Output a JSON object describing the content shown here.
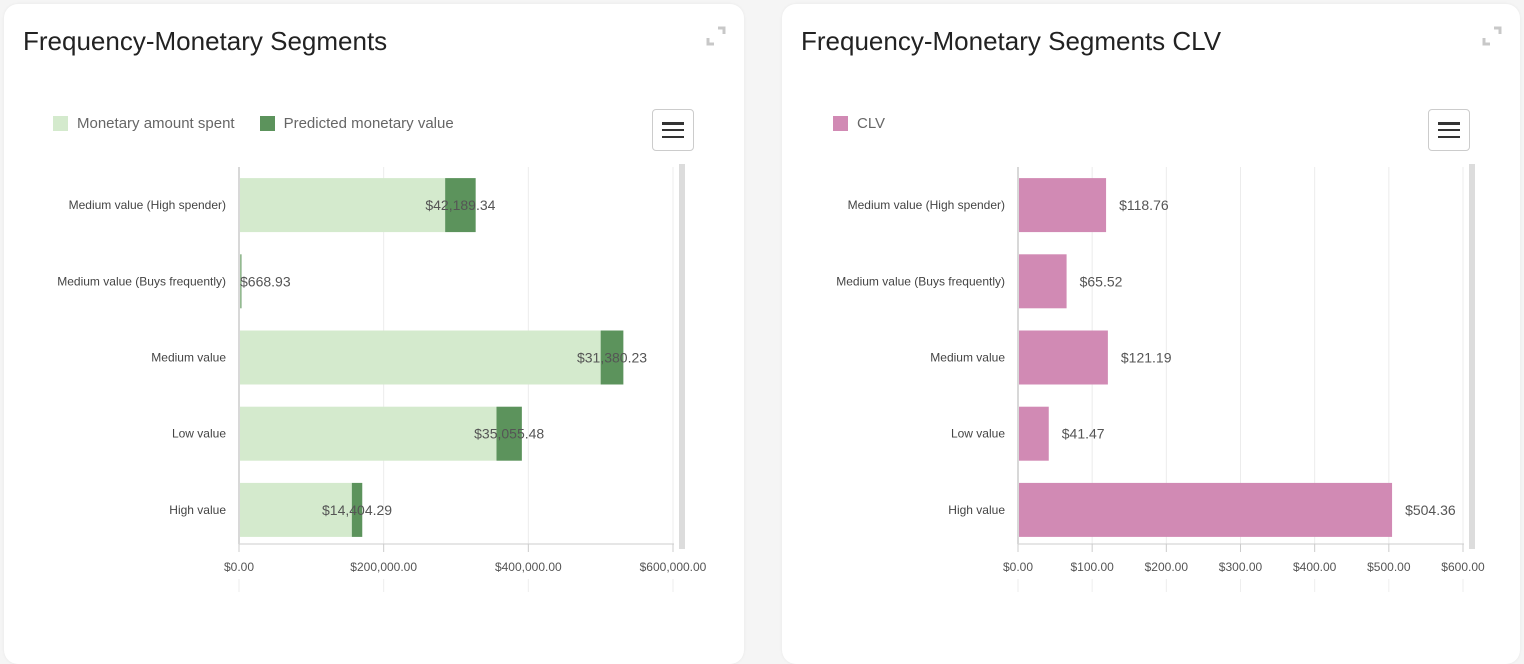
{
  "charts": [
    {
      "title": "Frequency-Monetary Segments",
      "expand_icon": "expand-icon",
      "menu_icon": "hamburger-menu-icon",
      "legend": [
        {
          "label": "Monetary amount spent",
          "color": "#d4eacd"
        },
        {
          "label": "Predicted monetary value",
          "color": "#5c935c"
        }
      ]
    },
    {
      "title": "Frequency-Monetary Segments CLV",
      "expand_icon": "expand-icon",
      "menu_icon": "hamburger-menu-icon",
      "legend": [
        {
          "label": "CLV",
          "color": "#d18ab4"
        }
      ]
    }
  ],
  "chart_data": [
    {
      "type": "bar",
      "orientation": "horizontal",
      "stacked": true,
      "title": "Frequency-Monetary Segments",
      "categories": [
        "Medium value (High spender)",
        "Medium value (Buys frequently)",
        "Medium value",
        "Low value",
        "High value"
      ],
      "series": [
        {
          "name": "Monetary amount spent",
          "color": "#d4eacd",
          "values": [
            285000,
            2000,
            500000,
            356000,
            156000
          ]
        },
        {
          "name": "Predicted monetary value",
          "color": "#5c935c",
          "values": [
            42189.34,
            668.93,
            31380.23,
            35055.48,
            14404.29
          ]
        }
      ],
      "data_labels": [
        "$42,189.34",
        "$668.93",
        "$31,380.23",
        "$35,055.48",
        "$14,404.29"
      ],
      "xlim": [
        0,
        600000
      ],
      "xticks": [
        0,
        200000,
        400000,
        600000
      ],
      "xtick_labels": [
        "$0.00",
        "$200,000.00",
        "$400,000.00",
        "$600,000.00"
      ],
      "grid": true,
      "legend_position": "top-left"
    },
    {
      "type": "bar",
      "orientation": "horizontal",
      "title": "Frequency-Monetary Segments CLV",
      "categories": [
        "Medium value (High spender)",
        "Medium value (Buys frequently)",
        "Medium value",
        "Low value",
        "High value"
      ],
      "series": [
        {
          "name": "CLV",
          "color": "#d18ab4",
          "values": [
            118.76,
            65.52,
            121.19,
            41.47,
            504.36
          ]
        }
      ],
      "data_labels": [
        "$118.76",
        "$65.52",
        "$121.19",
        "$41.47",
        "$504.36"
      ],
      "xlim": [
        0,
        600
      ],
      "xticks": [
        0,
        100,
        200,
        300,
        400,
        500,
        600
      ],
      "xtick_labels": [
        "$0.00",
        "$100.00",
        "$200.00",
        "$300.00",
        "$400.00",
        "$500.00",
        "$600.00"
      ],
      "grid": true,
      "legend_position": "top-left"
    }
  ]
}
